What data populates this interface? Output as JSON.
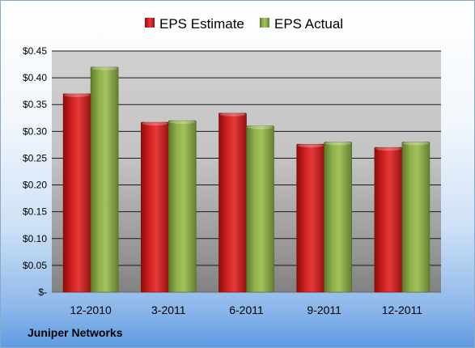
{
  "footer": {
    "company": "Juniper Networks"
  },
  "colors": {
    "estimate": "#c41a1a",
    "actual": "#86a843"
  },
  "chart_data": {
    "type": "bar",
    "categories": [
      "12-2010",
      "3-2011",
      "6-2011",
      "9-2011",
      "12-2011"
    ],
    "series": [
      {
        "name": "EPS Estimate",
        "values": [
          0.37,
          0.317,
          0.334,
          0.276,
          0.27
        ]
      },
      {
        "name": "EPS Actual",
        "values": [
          0.42,
          0.32,
          0.31,
          0.28,
          0.28
        ]
      }
    ],
    "y_ticks": [
      {
        "value": 0,
        "label": "$-"
      },
      {
        "value": 0.05,
        "label": "$0.05"
      },
      {
        "value": 0.1,
        "label": "$0.10"
      },
      {
        "value": 0.15,
        "label": "$0.15"
      },
      {
        "value": 0.2,
        "label": "$0.20"
      },
      {
        "value": 0.25,
        "label": "$0.25"
      },
      {
        "value": 0.3,
        "label": "$0.30"
      },
      {
        "value": 0.35,
        "label": "$0.35"
      },
      {
        "value": 0.4,
        "label": "$0.40"
      },
      {
        "value": 0.45,
        "label": "$0.45"
      }
    ],
    "title": "",
    "xlabel": "",
    "ylabel": "",
    "ylim": [
      0,
      0.45
    ],
    "grid": true,
    "legend_position": "top"
  }
}
